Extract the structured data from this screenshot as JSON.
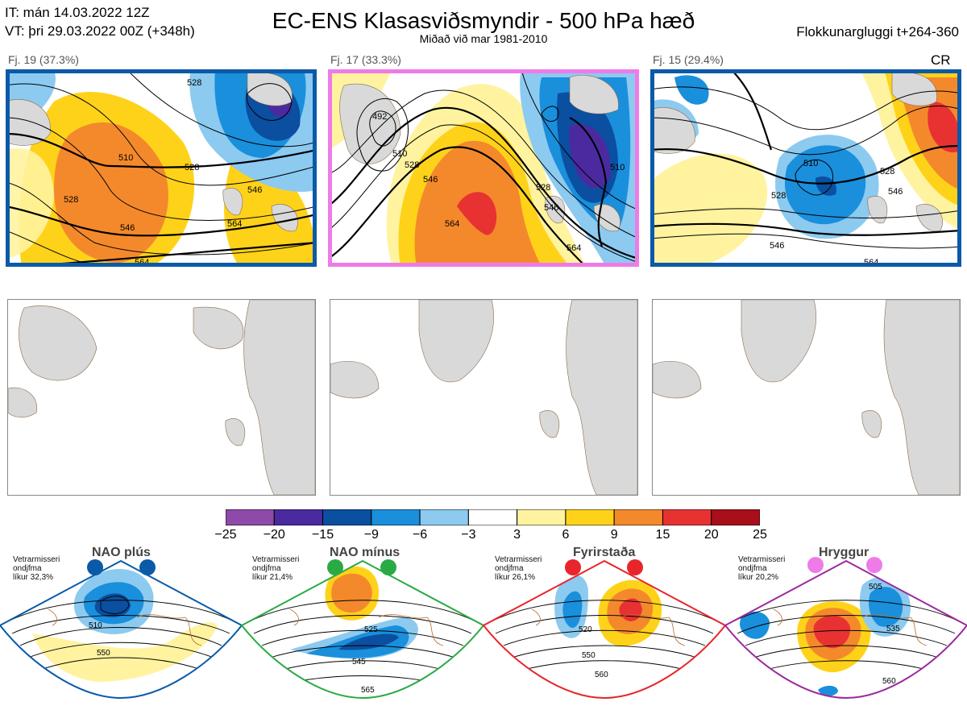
{
  "header": {
    "it_line": "IT: mán 14.03.2022 12Z",
    "vt_line": "VT: þri 29.03.2022 00Z  (+348h)",
    "title": "EC-ENS Klasasviðsmyndir - 500 hPa hæð",
    "subtitle": "Miðað við mar 1981-2010",
    "window": "Flokkunargluggi t+264-360"
  },
  "panels": [
    {
      "label": "Fj. 19 (37.3%)",
      "border": "#0a5aa8",
      "tag": "",
      "contours": [
        "510",
        "528",
        "546",
        "564",
        "528",
        "546",
        "564",
        "528"
      ]
    },
    {
      "label": "Fj. 17 (33.3%)",
      "border": "#ee7be8",
      "tag": "",
      "contours": [
        "492",
        "510",
        "528",
        "546",
        "564",
        "528",
        "546",
        "564",
        "510"
      ]
    },
    {
      "label": "Fj. 15 (29.4%)",
      "border": "#0a5aa8",
      "tag": "CR",
      "contours": [
        "510",
        "528",
        "546",
        "564",
        "528",
        "546"
      ]
    }
  ],
  "colorbar": {
    "ticks": [
      "−25",
      "−20",
      "−15",
      "−9",
      "−6",
      "−3",
      "3",
      "6",
      "9",
      "15",
      "20",
      "25"
    ],
    "colors": [
      "#8e4aa8",
      "#4b2aa0",
      "#0a4fa0",
      "#1a8fdc",
      "#8ccaf0",
      "#ffffff",
      "#fff3a0",
      "#ffd21a",
      "#f4892c",
      "#e83232",
      "#a80f1a"
    ]
  },
  "regimes": [
    {
      "title": "NAO plús",
      "note": [
        "Vetrarmisseri",
        "ondjfma",
        "líkur 32,3%"
      ],
      "color": "#0a5aa8",
      "contours": [
        "510",
        "550"
      ]
    },
    {
      "title": "NAO mínus",
      "note": [
        "Vetrarmisseri",
        "ondjfma",
        "líkur 21,4%"
      ],
      "color": "#2aaa44",
      "contours": [
        "525",
        "545",
        "565"
      ]
    },
    {
      "title": "Fyrirstaða",
      "note": [
        "Vetrarmisseri",
        "ondjfma",
        "líkur 26,1%"
      ],
      "color": "#e8252a",
      "contours": [
        "520",
        "550",
        "560"
      ]
    },
    {
      "title": "Hryggur",
      "note": [
        "Vetrarmisseri",
        "ondjfma",
        "líkur 20,2%"
      ],
      "color": "#ee7be8",
      "contours": [
        "505",
        "535",
        "560"
      ]
    }
  ]
}
